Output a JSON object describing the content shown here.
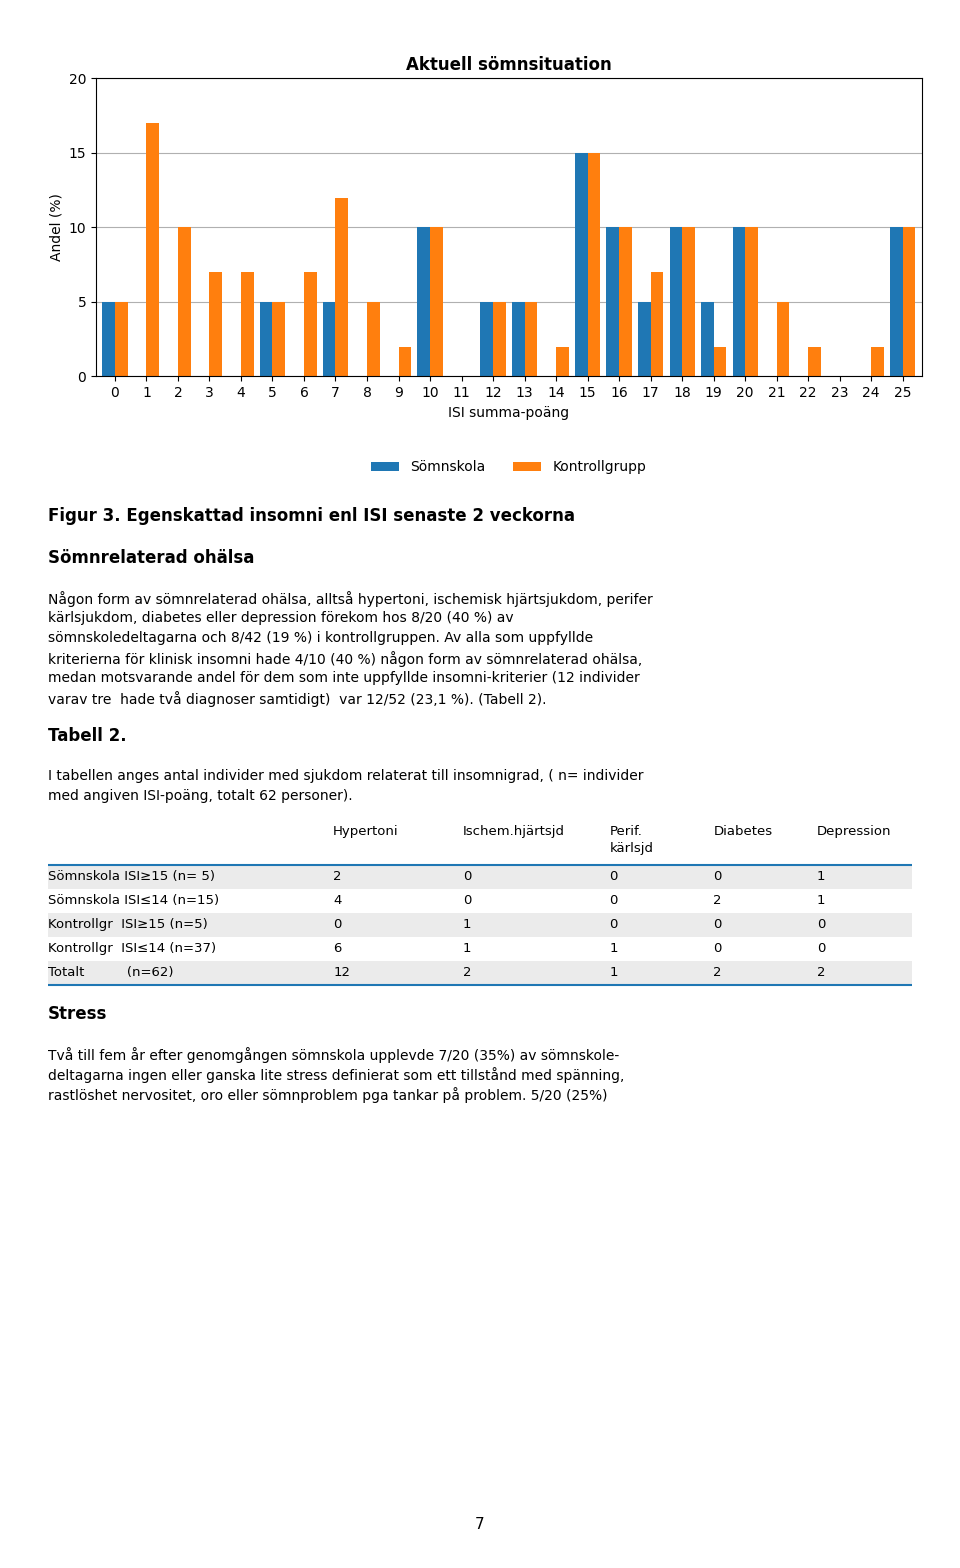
{
  "chart_data": {
    "type": "bar",
    "title": "Aktuell sömnsituation",
    "xlabel": "ISI summa-poäng",
    "ylabel": "Andel (%)",
    "categories": [
      "0",
      "1",
      "2",
      "3",
      "4",
      "5",
      "6",
      "7",
      "8",
      "9",
      "10",
      "11",
      "12",
      "13",
      "14",
      "15",
      "16",
      "17",
      "18",
      "19",
      "20",
      "21",
      "22",
      "23",
      "24",
      "25"
    ],
    "series": [
      {
        "name": "Sömnskola",
        "values": [
          5,
          0,
          0,
          0,
          0,
          5,
          0,
          5,
          0,
          0,
          10,
          0,
          5,
          5,
          0,
          15,
          10,
          5,
          10,
          5,
          10,
          0,
          0,
          0,
          0,
          10
        ]
      },
      {
        "name": "Kontrollgrupp",
        "values": [
          5,
          17,
          10,
          7,
          7,
          5,
          7,
          12,
          5,
          2,
          10,
          0,
          5,
          5,
          2,
          15,
          10,
          7,
          10,
          2,
          10,
          5,
          2,
          0,
          2,
          10
        ]
      }
    ],
    "ylim": [
      0,
      20
    ],
    "yticks": [
      0,
      5,
      10,
      15,
      20
    ],
    "grid": true,
    "annotations": [
      {
        "lines": [
          "Figur 3. Egenskattad insomni enl ISI senaste 2 veckorna"
        ]
      },
      {
        "lines": [
          "Sömnrelaterad ohälsa"
        ]
      },
      {
        "lines": [
          "Någon form av sömnrelaterad ohälsa, alltså hypertoni, ischemisk hjärtsjukdom, perifer",
          "kärlsjukdom, diabetes eller depression förekom hos 8/20 (40 %) av",
          "sömnskoledeltagarna och 8/42 (19 %) i kontrollgruppen. Av alla som uppfyllde",
          "kriterierna för klinisk insomni hade 4/10 (40 %) någon form av sömnrelaterad ohälsa,",
          "medan motsvarande andel för dem som inte uppfyllde insomni-kriterier (12 individer",
          "varav tre  hade två diagnoser samtidigt)  var 12/52 (23,1 %). (Tabell 2)."
        ]
      },
      {
        "lines": [
          "Tabell 2."
        ]
      },
      {
        "lines": [
          "I tabellen anges antal individer med sjukdom relaterat till insomnigrad, ( n= individer",
          "med angiven ISI-poäng, totalt 62 personer)."
        ]
      },
      {
        "columns": [
          "Hypertoni",
          "Ischem.hjärtsjd",
          "Perif.\nkärlsjd",
          "Diabetes",
          "Depression"
        ],
        "rows": [
          [
            "Sömnskola ISI≥15 (n= 5)",
            2,
            0,
            0,
            0,
            1
          ],
          [
            "Sömnskola ISI≤14 (n=15)",
            4,
            0,
            0,
            2,
            1
          ],
          [
            "Kontrollgr  ISI≥15 (n=5)",
            0,
            1,
            0,
            0,
            0
          ],
          [
            "Kontrollgr  ISI≤14 (n=37)",
            6,
            1,
            1,
            0,
            0
          ],
          [
            "Totalt          (n=62)",
            12,
            2,
            1,
            2,
            2
          ]
        ]
      },
      {
        "lines": [
          "Stress"
        ]
      },
      {
        "lines": [
          "Två till fem år efter genomgången sömnskola upplevde 7/20 (35%) av sömnskole-",
          "deltagarna ingen eller ganska lite stress definierat som ett tillstånd med spänning,",
          "rastlöshet nervositet, oro eller sömnproblem pga tankar på problem. 5/20 (25%)"
        ]
      }
    ],
    "page_number": "7"
  }
}
